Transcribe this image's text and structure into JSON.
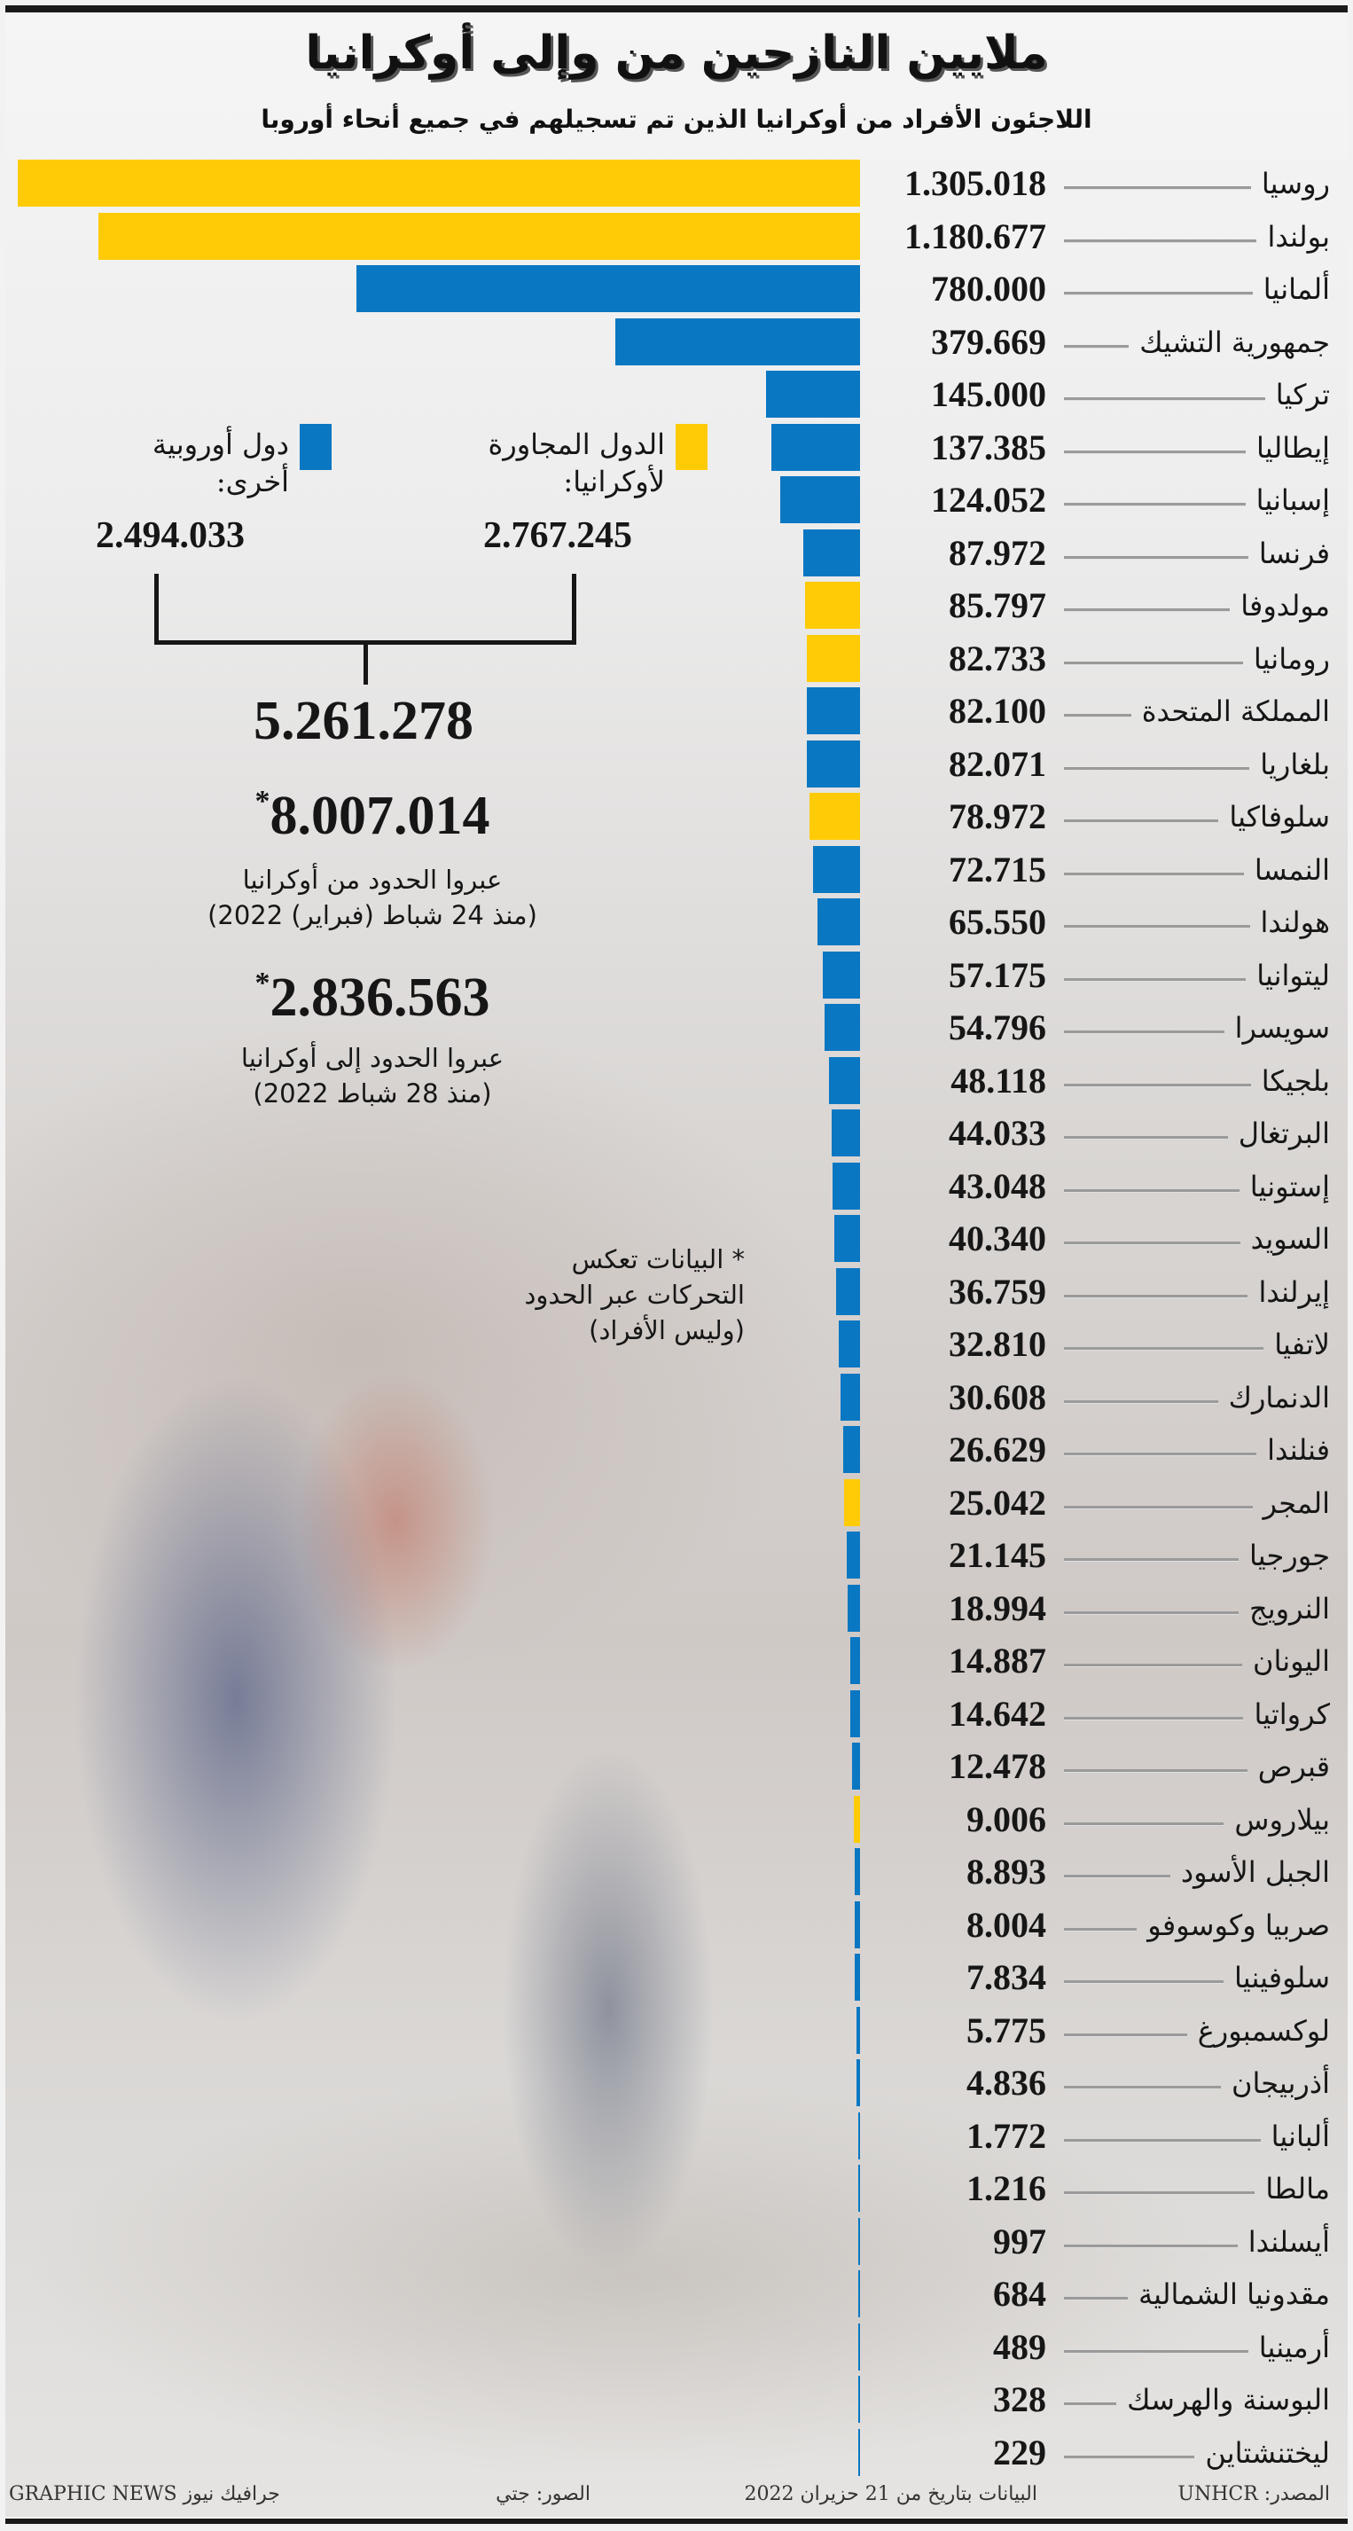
{
  "header": {
    "title": "ملايين النازحين من وإلى أوكرانيا",
    "subtitle": "اللاجئون الأفراد من أوكرانيا الذين تم تسجيلهم في جميع أنحاء أوروبا"
  },
  "colors": {
    "neighbouring": "#fecb06",
    "other_european": "#0a77c2",
    "text": "#161616",
    "leader": "#9a9a9a"
  },
  "legend": {
    "neighbouring": {
      "label_line1": "الدول المجاورة",
      "label_line2": "لأوكرانيا:",
      "total": "2.767.245"
    },
    "other_european": {
      "label_line1": "دول أوروبية",
      "label_line2": "أخرى:",
      "total": "2.494.033"
    },
    "grand_total": "5.261.278"
  },
  "stats": {
    "crossed_out": {
      "value": "8.007.014",
      "marker": "*",
      "line1": "عبروا الحدود من أوكرانيا",
      "line2": "(منذ 24 شباط (فبراير) 2022)"
    },
    "crossed_in": {
      "value": "2.836.563",
      "marker": "*",
      "line1": "عبروا الحدود إلى أوكرانيا",
      "line2": "(منذ 28 شباط 2022)"
    }
  },
  "footnote": {
    "line1": "* البيانات تعكس",
    "line2": "التحركات عبر الحدود",
    "line3": "(وليس الأفراد)"
  },
  "footer": {
    "source": "المصدر: UNHCR",
    "data_date": "البيانات بتاريخ من 21 حزيران 2022",
    "photos": "الصور: جتي",
    "credit": "GRAPHIC NEWS جرافيك نيوز"
  },
  "chart_data": {
    "type": "bar",
    "orientation": "horizontal",
    "title": "ملايين النازحين من وإلى أوكرانيا",
    "subtitle": "اللاجئون الأفراد من أوكرانيا الذين تم تسجيلهم في جميع أنحاء أوروبا",
    "xlabel": "",
    "ylabel": "",
    "grid": false,
    "legend_position": "upper-left",
    "legend": [
      "الدول المجاورة لأوكرانيا",
      "دول أوروبية أخرى"
    ],
    "categories": [
      "روسيا",
      "بولندا",
      "ألمانيا",
      "جمهورية التشيك",
      "تركيا",
      "إيطاليا",
      "إسبانيا",
      "فرنسا",
      "مولدوفا",
      "رومانيا",
      "المملكة المتحدة",
      "بلغاريا",
      "سلوفاكيا",
      "النمسا",
      "هولندا",
      "ليتوانيا",
      "سويسرا",
      "بلجيكا",
      "البرتغال",
      "إستونيا",
      "السويد",
      "إيرلندا",
      "لاتفيا",
      "الدنمارك",
      "فنلندا",
      "المجر",
      "جورجيا",
      "النرويج",
      "اليونان",
      "كرواتيا",
      "قبرص",
      "بيلاروس",
      "الجبل الأسود",
      "صربيا وكوسوفو",
      "سلوفينيا",
      "لوكسمبورغ",
      "أذربيجان",
      "ألبانيا",
      "مالطا",
      "أيسلندا",
      "مقدونيا الشمالية",
      "أرمينيا",
      "البوسنة والهرسك",
      "ليختنشتاين"
    ],
    "values": [
      1305018,
      1180677,
      780000,
      379669,
      145000,
      137385,
      124052,
      87972,
      85797,
      82733,
      82100,
      82071,
      78972,
      72715,
      65550,
      57175,
      54796,
      48118,
      44033,
      43048,
      40340,
      36759,
      32810,
      30608,
      26629,
      25042,
      21145,
      18994,
      14887,
      14642,
      12478,
      9006,
      8893,
      8004,
      7834,
      5775,
      4836,
      1772,
      1216,
      997,
      684,
      489,
      328,
      229
    ],
    "labels": [
      "1.305.018",
      "1.180.677",
      "780.000",
      "379.669",
      "145.000",
      "137.385",
      "124.052",
      "87.972",
      "85.797",
      "82.733",
      "82.100",
      "82.071",
      "78.972",
      "72.715",
      "65.550",
      "57.175",
      "54.796",
      "48.118",
      "44.033",
      "43.048",
      "40.340",
      "36.759",
      "32.810",
      "30.608",
      "26.629",
      "25.042",
      "21.145",
      "18.994",
      "14.887",
      "14.642",
      "12.478",
      "9.006",
      "8.893",
      "8.004",
      "7.834",
      "5.775",
      "4.836",
      "1.772",
      "1.216",
      "997",
      "684",
      "489",
      "328",
      "229"
    ],
    "group": [
      "neighbouring",
      "neighbouring",
      "other",
      "other",
      "other",
      "other",
      "other",
      "other",
      "neighbouring",
      "neighbouring",
      "other",
      "other",
      "neighbouring",
      "other",
      "other",
      "other",
      "other",
      "other",
      "other",
      "other",
      "other",
      "other",
      "other",
      "other",
      "other",
      "neighbouring",
      "other",
      "other",
      "other",
      "other",
      "other",
      "neighbouring",
      "other",
      "other",
      "other",
      "other",
      "other",
      "other",
      "other",
      "other",
      "other",
      "other",
      "other",
      "other"
    ],
    "xlim": [
      0,
      1305018
    ],
    "totals": {
      "neighbouring": 2767245,
      "other_european": 2494033,
      "all": 5261278
    },
    "annotations": [
      "8.007.014* عبروا الحدود من أوكرانيا (منذ 24 شباط (فبراير) 2022)",
      "2.836.563* عبروا الحدود إلى أوكرانيا (منذ 28 شباط 2022)",
      "* البيانات تعكس التحركات عبر الحدود (وليس الأفراد)"
    ]
  }
}
